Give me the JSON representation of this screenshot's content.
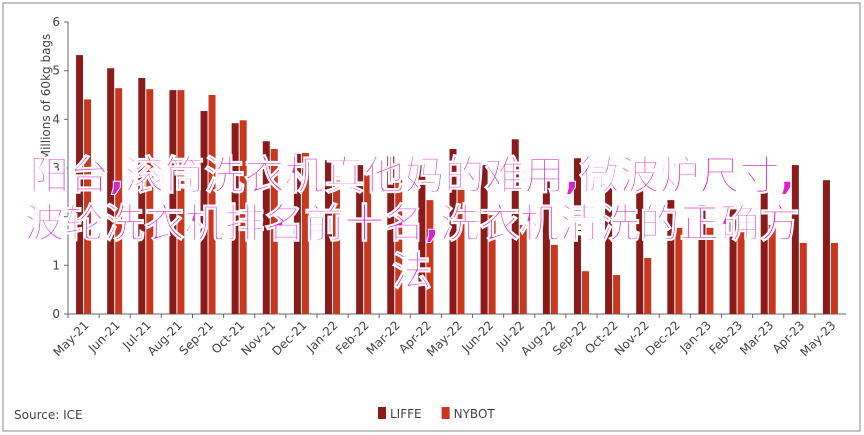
{
  "chart_data": {
    "type": "bar",
    "ylabel": "Millions of 60kg bags",
    "categories": [
      "May-21",
      "Jun-21",
      "Jul-21",
      "Aug-21",
      "Sep-21",
      "Oct-21",
      "Nov-21",
      "Dec-21",
      "Jan-22",
      "Feb-22",
      "Mar-22",
      "Apr-22",
      "May-22",
      "Jun-22",
      "Jul-22",
      "Aug-22",
      "Sep-22",
      "Oct-22",
      "Nov-22",
      "Dec-22",
      "Jan-23",
      "Feb-23",
      "Mar-23",
      "Apr-23",
      "May-23"
    ],
    "series": [
      {
        "name": "LIFFE",
        "color": "#8b1a1a",
        "values": [
          5.32,
          5.05,
          4.85,
          4.6,
          4.17,
          3.92,
          3.55,
          3.29,
          3.16,
          3.06,
          3.24,
          3.06,
          3.39,
          3.06,
          3.59,
          2.75,
          3.2,
          2.65,
          2.55,
          2.34,
          2.24,
          2.24,
          2.53,
          3.06,
          2.75
        ]
      },
      {
        "name": "NYBOT",
        "color": "#c8381f",
        "values": [
          4.41,
          4.64,
          4.62,
          4.6,
          4.5,
          3.98,
          3.39,
          3.31,
          2.96,
          2.85,
          2.75,
          2.34,
          2.55,
          2.03,
          1.83,
          1.42,
          0.88,
          0.8,
          1.15,
          1.77,
          1.77,
          1.68,
          1.83,
          1.46,
          1.46
        ]
      }
    ],
    "ylim": [
      0,
      6
    ],
    "yticks": [
      0,
      1,
      2,
      3,
      4,
      5,
      6
    ],
    "source": "Source: ICE",
    "overlay_text": "阳台,滚筒洗衣机真他妈的难用,微波炉尺寸,波轮洗衣机排名前十名,洗衣机清洗的正确方法"
  }
}
